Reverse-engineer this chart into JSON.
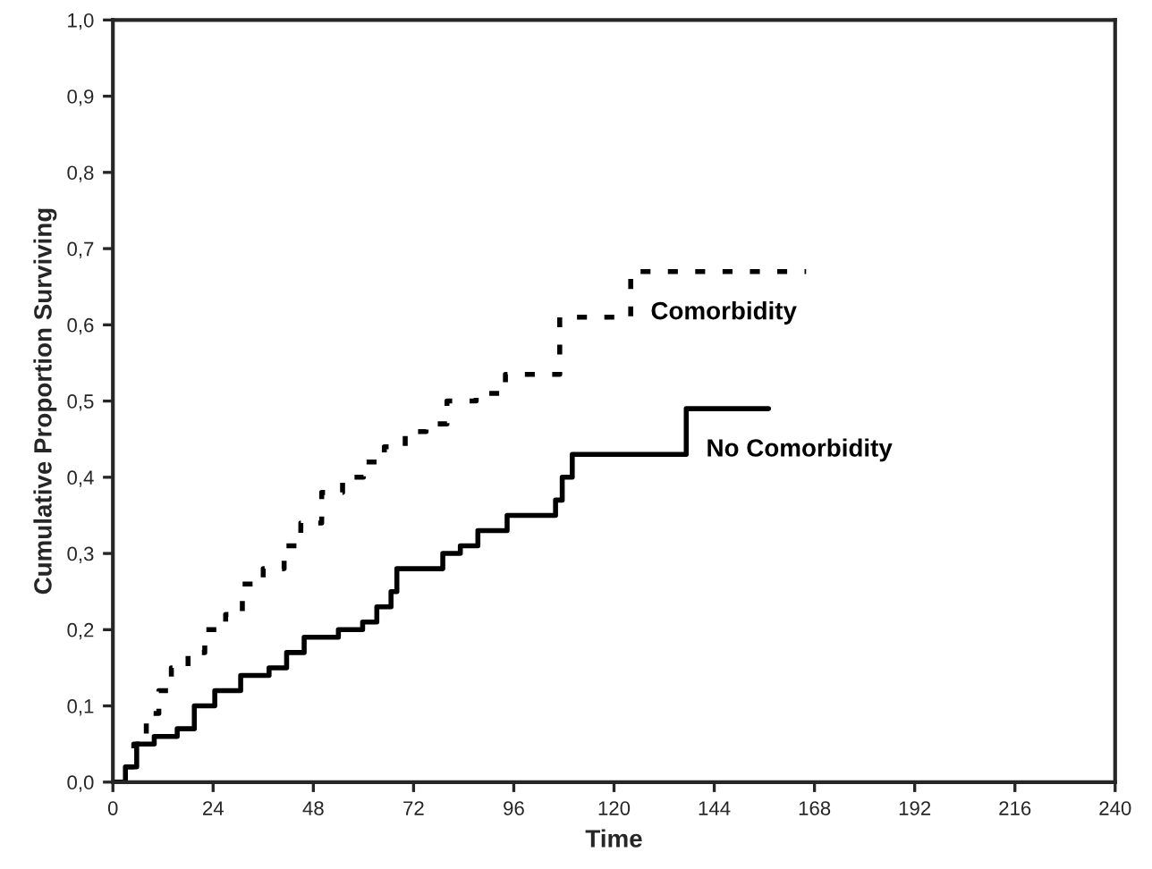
{
  "chart_data": {
    "type": "step",
    "xlabel": "Time",
    "ylabel": "Cumulative Proportion Surviving",
    "xlim": [
      0,
      240
    ],
    "xticks": [
      0,
      24,
      48,
      72,
      96,
      120,
      144,
      168,
      192,
      216,
      240
    ],
    "ylim": [
      0,
      1.0
    ],
    "yticks": [
      {
        "value": 0,
        "label": "0,0"
      },
      {
        "value": 0.1,
        "label": "0,1"
      },
      {
        "value": 0.2,
        "label": "0,2"
      },
      {
        "value": 0.3,
        "label": "0,3"
      },
      {
        "value": 0.4,
        "label": "0,4"
      },
      {
        "value": 0.5,
        "label": "0,5"
      },
      {
        "value": 0.6,
        "label": "0,6"
      },
      {
        "value": 0.7,
        "label": "0,7"
      },
      {
        "value": 0.8,
        "label": "0,8"
      },
      {
        "value": 0.9,
        "label": "0,9"
      },
      {
        "value": 1.0,
        "label": "1,0"
      }
    ],
    "grid": false,
    "legend": false,
    "series": [
      {
        "name": "Comorbidity",
        "color": "#000000",
        "line_style": "dotted",
        "x": [
          0,
          2,
          5,
          8,
          11,
          14,
          18,
          22,
          27,
          31,
          36,
          41,
          45,
          50,
          55,
          60,
          65,
          70,
          75,
          80,
          87,
          94,
          107,
          124,
          166
        ],
        "values": [
          0,
          0.02,
          0.05,
          0.09,
          0.12,
          0.15,
          0.17,
          0.2,
          0.22,
          0.26,
          0.28,
          0.31,
          0.34,
          0.38,
          0.4,
          0.42,
          0.44,
          0.46,
          0.47,
          0.5,
          0.51,
          0.535,
          0.61,
          0.67,
          0.67
        ]
      },
      {
        "name": "No Comorbidity",
        "color": "#000000",
        "line_style": "solid",
        "x": [
          0,
          3,
          5.7,
          9.9,
          15.4,
          19.5,
          24.4,
          30.6,
          37.4,
          41.6,
          45.8,
          54,
          59.8,
          63.2,
          66.6,
          68,
          79,
          83.2,
          87.4,
          94.4,
          106,
          107.6,
          110,
          137.3,
          157
        ],
        "values": [
          0,
          0.02,
          0.05,
          0.06,
          0.07,
          0.1,
          0.12,
          0.14,
          0.15,
          0.17,
          0.19,
          0.2,
          0.21,
          0.23,
          0.25,
          0.28,
          0.3,
          0.31,
          0.33,
          0.35,
          0.37,
          0.4,
          0.43,
          0.49,
          0.49
        ]
      }
    ]
  }
}
